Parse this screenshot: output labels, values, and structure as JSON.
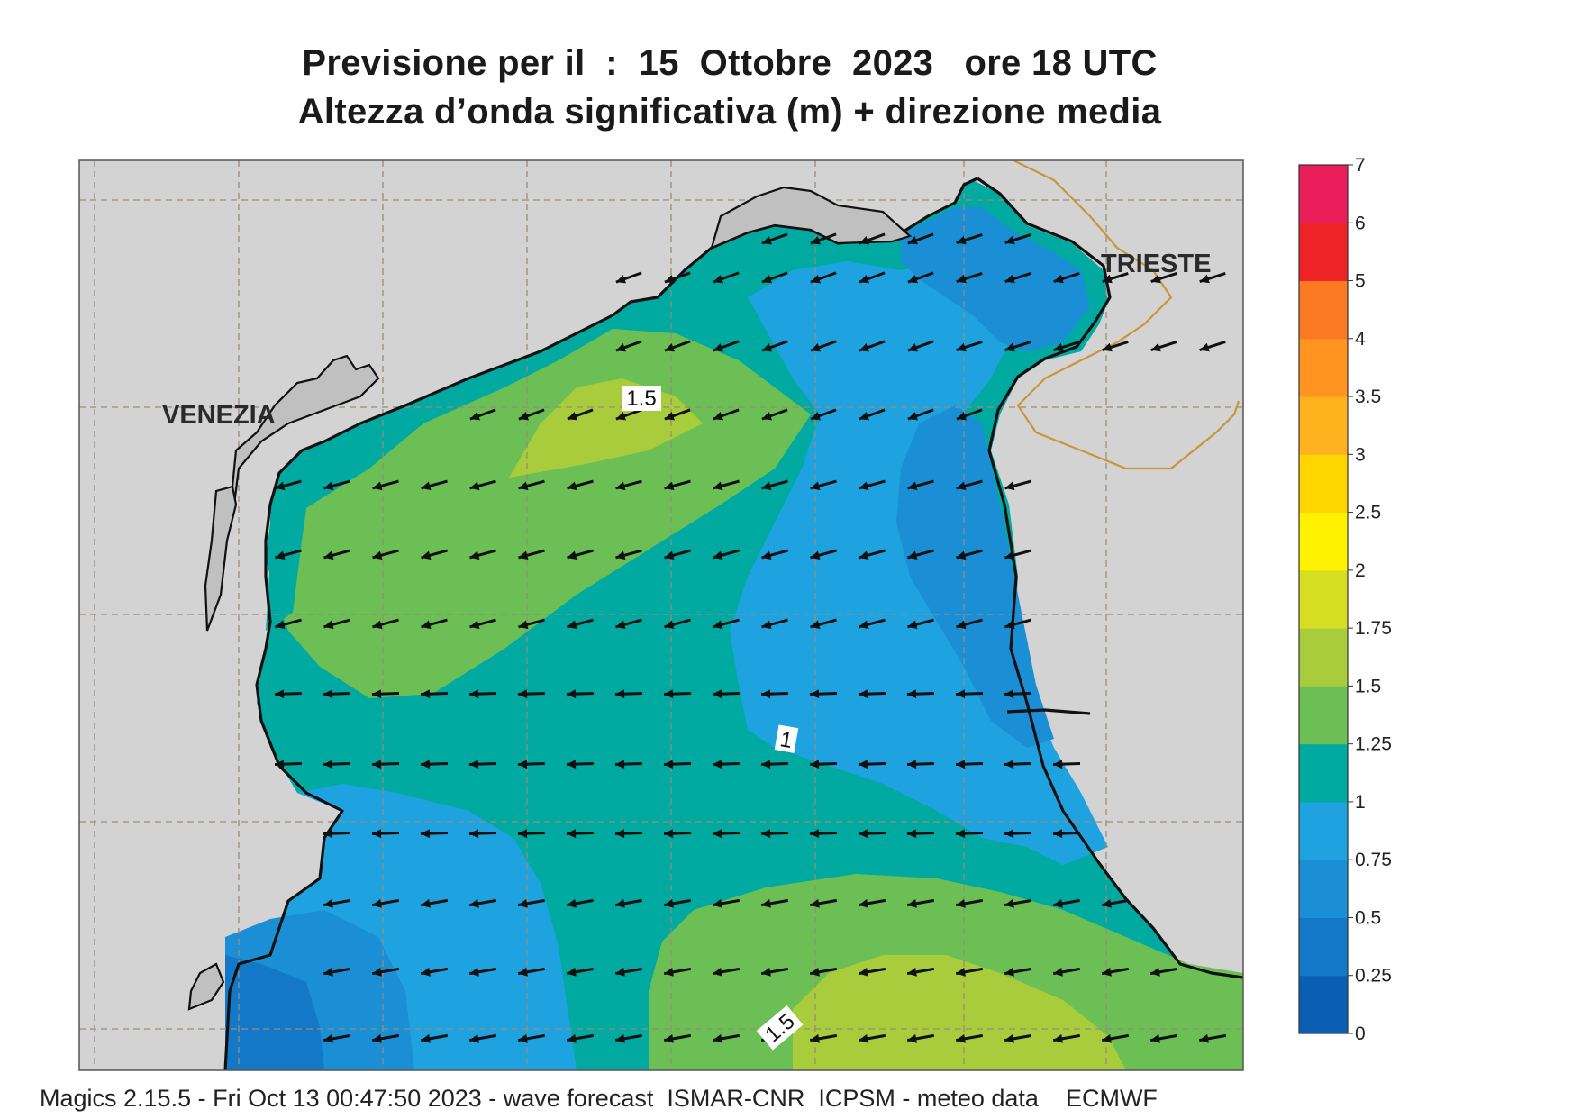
{
  "title": {
    "line1": "Previsione per il  :  15  Ottobre  2023   ore 18 UTC",
    "line2": "Altezza d’onda significativa (m) + direzione media"
  },
  "cities": {
    "venezia": "VENEZIA",
    "trieste": "TRIESTE"
  },
  "contour_labels": {
    "upper": "1.5",
    "middle": "1",
    "lower": "1.5"
  },
  "colorbar": {
    "levels": [
      "0",
      "0.25",
      "0.5",
      "0.75",
      "1",
      "1.25",
      "1.5",
      "1.75",
      "2",
      "2.5",
      "3",
      "3.5",
      "4",
      "5",
      "6",
      "7"
    ],
    "colors": [
      "#0a5fb5",
      "#1478c8",
      "#1a8fd6",
      "#1fa2e0",
      "#00aaa0",
      "#6cbf55",
      "#a9cc3c",
      "#d6de22",
      "#fff200",
      "#ffd500",
      "#ffb21e",
      "#ff9520",
      "#f97a22",
      "#ee2328",
      "#ea1e5b"
    ]
  },
  "footer": "Magics 2.15.5 - Fri Oct 13 00:47:50 2023 - wave forecast  ISMAR-CNR  ICPSM - meteo data    ECMWF"
}
